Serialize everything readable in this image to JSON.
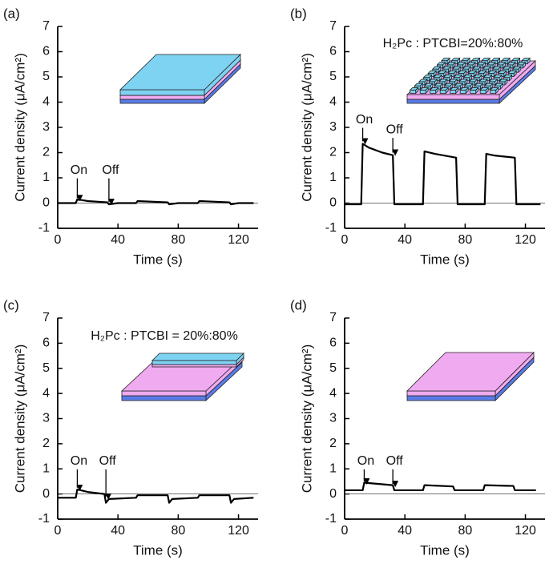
{
  "chart_data": [
    {
      "type": "line",
      "title": "(a)",
      "x_label": "Time (s)",
      "y_label": "Current density (μA/cm²)",
      "annotations": [
        "On",
        "Off"
      ],
      "color": "#000000",
      "xlim": [
        0,
        133
      ],
      "ylim": [
        -1,
        7
      ],
      "xticks": [
        0,
        40,
        80,
        120
      ],
      "yticks": [
        -1,
        0,
        1,
        2,
        3,
        4,
        5,
        6,
        7
      ],
      "x": [
        0,
        12,
        13,
        20,
        33,
        34,
        40,
        52,
        53,
        73,
        74,
        80,
        93,
        94,
        114,
        115,
        120,
        130
      ],
      "values": [
        0,
        0,
        0.15,
        0.08,
        0.03,
        -0.05,
        0,
        0,
        0.08,
        0.03,
        -0.05,
        0,
        0,
        0.08,
        0.03,
        -0.05,
        0,
        0
      ]
    },
    {
      "type": "line",
      "title": "(b)",
      "x_label": "Time (s)",
      "y_label": "Current density (μA/cm²)",
      "annotations": [
        "On",
        "Off",
        "H₂Pc : PTCBI=20%:80%"
      ],
      "color": "#000000",
      "xlim": [
        0,
        133
      ],
      "ylim": [
        -1,
        7
      ],
      "xticks": [
        0,
        40,
        80,
        120
      ],
      "yticks": [
        -1,
        0,
        1,
        2,
        3,
        4,
        5,
        6,
        7
      ],
      "x": [
        0,
        11,
        12,
        16,
        25,
        32,
        33,
        52,
        53,
        60,
        74,
        75,
        93,
        94,
        100,
        113,
        114,
        130
      ],
      "values": [
        -0.05,
        -0.05,
        2.35,
        2.2,
        2.0,
        1.9,
        -0.05,
        -0.05,
        2.05,
        1.95,
        1.8,
        -0.05,
        -0.05,
        1.95,
        1.88,
        1.8,
        -0.05,
        -0.05
      ]
    },
    {
      "type": "line",
      "title": "(c)",
      "x_label": "Time (s)",
      "y_label": "Current density (μA/cm²)",
      "annotations": [
        "On",
        "Off",
        "H₂Pc : PTCBI = 20%:80%"
      ],
      "color": "#000000",
      "xlim": [
        0,
        133
      ],
      "ylim": [
        -1,
        7
      ],
      "xticks": [
        0,
        40,
        80,
        120
      ],
      "yticks": [
        -1,
        0,
        1,
        2,
        3,
        4,
        5,
        6,
        7
      ],
      "x": [
        0,
        12,
        13,
        20,
        31,
        32,
        34,
        52,
        53,
        73,
        74,
        76,
        93,
        94,
        114,
        115,
        117,
        130
      ],
      "values": [
        -0.15,
        -0.15,
        0.18,
        0.08,
        0,
        -0.35,
        -0.2,
        -0.15,
        -0.05,
        -0.05,
        -0.35,
        -0.2,
        -0.15,
        -0.05,
        -0.05,
        -0.35,
        -0.2,
        -0.15
      ]
    },
    {
      "type": "line",
      "title": "(d)",
      "x_label": "Time (s)",
      "y_label": "Current density (μA/cm²)",
      "annotations": [
        "On",
        "Off"
      ],
      "color": "#000000",
      "xlim": [
        0,
        133
      ],
      "ylim": [
        -1,
        7
      ],
      "xticks": [
        0,
        40,
        80,
        120
      ],
      "yticks": [
        -1,
        0,
        1,
        2,
        3,
        4,
        5,
        6,
        7
      ],
      "x": [
        0,
        12,
        13,
        32,
        33,
        52,
        53,
        72,
        73,
        92,
        93,
        112,
        113,
        127
      ],
      "values": [
        0.15,
        0.15,
        0.45,
        0.35,
        0.15,
        0.15,
        0.35,
        0.3,
        0.15,
        0.15,
        0.35,
        0.32,
        0.15,
        0.15
      ]
    }
  ]
}
